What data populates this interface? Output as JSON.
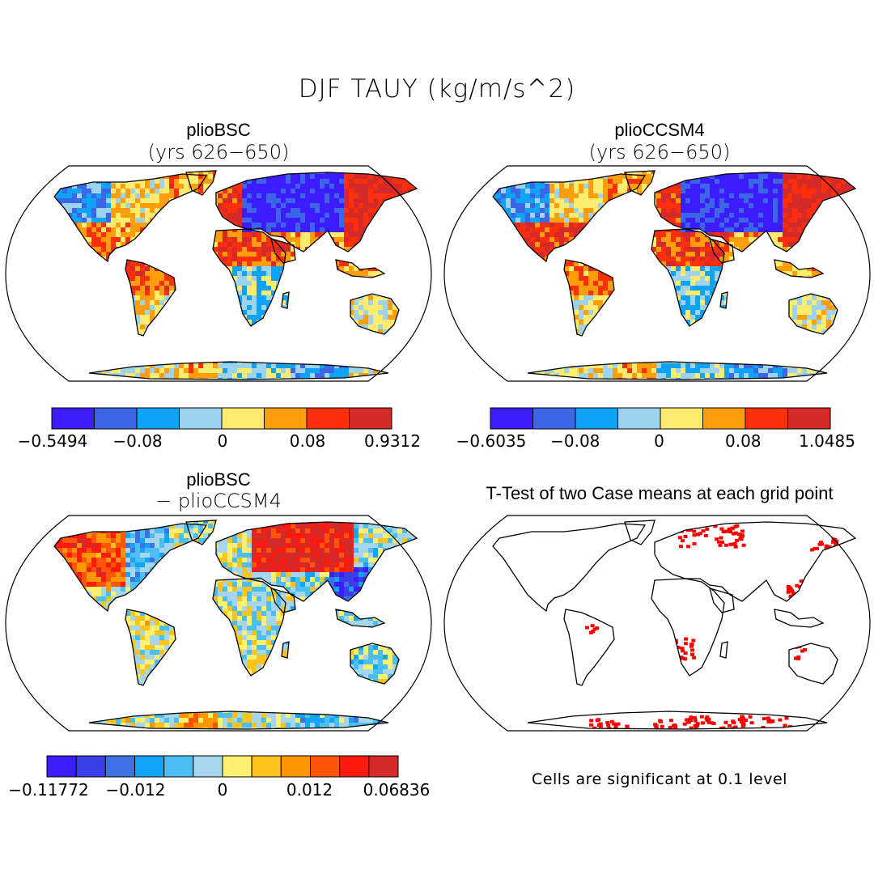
{
  "title": "DJF TAUY (kg/m/s^2)",
  "colors": {
    "cb8": [
      "#3c1dff",
      "#3d66e6",
      "#0fa3f6",
      "#9ed3ef",
      "#ffeb6e",
      "#ff9e0d",
      "#ff2f0b",
      "#d42a2a"
    ],
    "cb12": [
      "#3c1dff",
      "#3c3ee8",
      "#3d71e4",
      "#12a4f6",
      "#4cbff2",
      "#a6d6ee",
      "#fff170",
      "#ffc41c",
      "#ff9600",
      "#ff5508",
      "#ff1a10",
      "#d42a2a"
    ],
    "land_outline": "#000000",
    "ocean": "#ffffff",
    "signif": "#ff0000"
  },
  "panels": [
    {
      "title": "plioBSC",
      "subtitle": "(yrs 626−650)",
      "colorbar_ticks": [
        "−0.5494",
        "−0.08",
        "0",
        "0.08",
        "0.9312"
      ]
    },
    {
      "title": "plioCCSM4",
      "subtitle": "(yrs 626−650)",
      "colorbar_ticks": [
        "−0.6035",
        "−0.08",
        "0",
        "0.08",
        "1.0485"
      ]
    },
    {
      "title": "plioBSC",
      "subtitle": "− plioCCSM4",
      "colorbar_ticks": [
        "−0.11772",
        "−0.012",
        "0",
        "0.012",
        "0.06836"
      ]
    },
    {
      "title": "T-Test of two Case means at each grid point",
      "note": "Cells are significant at 0.1 level"
    }
  ],
  "chart_data": [
    {
      "type": "heatmap",
      "title": "plioBSC (yrs 626−650)",
      "variable": "DJF TAUY",
      "units": "kg/m/s^2",
      "projection": "Robinson",
      "colorbar_levels": 8,
      "colorbar_range": [
        -0.5494,
        0.9312
      ],
      "colorbar_tick_labels": [
        "−0.5494",
        "−0.08",
        "0",
        "0.08",
        "0.9312"
      ]
    },
    {
      "type": "heatmap",
      "title": "plioCCSM4 (yrs 626−650)",
      "variable": "DJF TAUY",
      "units": "kg/m/s^2",
      "projection": "Robinson",
      "colorbar_levels": 8,
      "colorbar_range": [
        -0.6035,
        1.0485
      ],
      "colorbar_tick_labels": [
        "−0.6035",
        "−0.08",
        "0",
        "0.08",
        "1.0485"
      ]
    },
    {
      "type": "heatmap",
      "title": "plioBSC − plioCCSM4",
      "variable": "DJF TAUY difference",
      "units": "kg/m/s^2",
      "projection": "Robinson",
      "colorbar_levels": 12,
      "colorbar_range": [
        -0.11772,
        0.06836
      ],
      "colorbar_tick_labels": [
        "−0.11772",
        "−0.012",
        "0",
        "0.012",
        "0.06836"
      ]
    },
    {
      "type": "heatmap",
      "title": "T-Test of two Case means at each grid point",
      "significance_level": 0.1,
      "projection": "Robinson"
    }
  ]
}
